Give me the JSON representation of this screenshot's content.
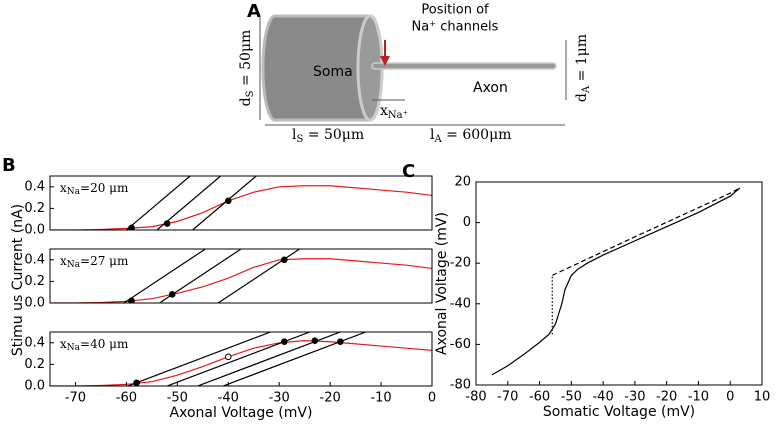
{
  "diagram": {
    "panel_label": "A",
    "soma": "Soma",
    "axon": "Axon",
    "channel_line1": "Position of",
    "channel_line2": "Na⁺ channels",
    "d_soma": {
      "symbol": "d",
      "sub": "S",
      "rest": " = 50μm"
    },
    "d_axon": {
      "symbol": "d",
      "sub": "A",
      "rest": " = 1μm"
    },
    "x_na": {
      "symbol": "x",
      "sub": "Na⁺"
    },
    "l_soma": {
      "symbol": "l",
      "sub": "S",
      "rest": " = 50μm"
    },
    "l_axon": {
      "symbol": "l",
      "sub": "A",
      "rest": " = 600μm"
    }
  },
  "chart_data": [
    {
      "type": "line",
      "panel_label": "B",
      "annotation": {
        "symbol": "x",
        "sub": "Na",
        "rest": "=20 μm"
      },
      "xlim": [
        -75,
        0
      ],
      "ylim": [
        0,
        0.5
      ],
      "yticks": [
        {
          "value": 0,
          "label": "0.0"
        },
        {
          "value": 0.2,
          "label": "0.2"
        },
        {
          "value": 0.4,
          "label": "0.4"
        }
      ],
      "series": [
        {
          "color": "#e41a1c",
          "style": "solid",
          "x": [
            -75,
            -70,
            -65,
            -60,
            -55,
            -50,
            -45,
            -40,
            -35,
            -30,
            -25,
            -20,
            -15,
            -10,
            -5,
            0
          ],
          "values": [
            0,
            0,
            0.005,
            0.015,
            0.03,
            0.08,
            0.16,
            0.27,
            0.35,
            0.4,
            0.41,
            0.41,
            0.39,
            0.37,
            0.35,
            0.32
          ]
        },
        {
          "color": "#000000",
          "style": "solid",
          "x": [
            -60,
            -47.5
          ],
          "values": [
            0,
            0.5
          ]
        },
        {
          "color": "#000000",
          "style": "solid",
          "x": [
            -54,
            -41.5
          ],
          "values": [
            0,
            0.5
          ]
        },
        {
          "color": "#000000",
          "style": "solid",
          "x": [
            -47,
            -34.5
          ],
          "values": [
            0,
            0.5
          ]
        },
        {
          "color": "#000000",
          "style": "points",
          "x": [
            -59,
            -52,
            -40
          ],
          "values": [
            0.02,
            0.06,
            0.27
          ]
        }
      ]
    },
    {
      "type": "line",
      "annotation": {
        "symbol": "x",
        "sub": "Na",
        "rest": "=27 μm"
      },
      "y_label": "Stimu us Current (nA)",
      "xlim": [
        -75,
        0
      ],
      "ylim": [
        0,
        0.5
      ],
      "yticks": [
        {
          "value": 0,
          "label": "0.0"
        },
        {
          "value": 0.2,
          "label": "0.2"
        },
        {
          "value": 0.4,
          "label": "0.4"
        }
      ],
      "series": [
        {
          "color": "#e41a1c",
          "style": "solid",
          "x": [
            -75,
            -70,
            -65,
            -60,
            -55,
            -50,
            -45,
            -40,
            -35,
            -30,
            -25,
            -20,
            -15,
            -10,
            -5,
            0
          ],
          "values": [
            0,
            0,
            0.005,
            0.015,
            0.04,
            0.09,
            0.15,
            0.23,
            0.33,
            0.4,
            0.41,
            0.41,
            0.39,
            0.37,
            0.35,
            0.32
          ]
        },
        {
          "color": "#000000",
          "style": "solid",
          "x": [
            -60.5,
            -44.5
          ],
          "values": [
            0,
            0.5
          ]
        },
        {
          "color": "#000000",
          "style": "solid",
          "x": [
            -53.5,
            -37.5
          ],
          "values": [
            0,
            0.5
          ]
        },
        {
          "color": "#000000",
          "style": "solid",
          "x": [
            -42,
            -26
          ],
          "values": [
            0,
            0.5
          ]
        },
        {
          "color": "#000000",
          "style": "points",
          "x": [
            -59,
            -51,
            -29
          ],
          "values": [
            0.02,
            0.08,
            0.4
          ]
        }
      ]
    },
    {
      "type": "line",
      "annotation": {
        "symbol": "x",
        "sub": "Na",
        "rest": "=40 μm"
      },
      "x_label": "Axonal Voltage (mV)",
      "xlim": [
        -75,
        0
      ],
      "ylim": [
        0,
        0.5
      ],
      "xticks": [
        -70,
        -60,
        -50,
        -40,
        -30,
        -20,
        -10,
        0
      ],
      "yticks": [
        {
          "value": 0,
          "label": "0.0"
        },
        {
          "value": 0.2,
          "label": "0.2"
        },
        {
          "value": 0.4,
          "label": "0.4"
        }
      ],
      "series": [
        {
          "color": "#e41a1c",
          "style": "solid",
          "x": [
            -75,
            -70,
            -65,
            -60,
            -55,
            -50,
            -45,
            -40,
            -35,
            -30,
            -25,
            -20,
            -15,
            -10,
            -5,
            0
          ],
          "values": [
            0,
            0,
            0.005,
            0.015,
            0.04,
            0.1,
            0.18,
            0.27,
            0.35,
            0.4,
            0.42,
            0.41,
            0.39,
            0.37,
            0.35,
            0.33
          ]
        },
        {
          "color": "#000000",
          "style": "solid",
          "x": [
            -59.7,
            -31.7
          ],
          "values": [
            0,
            0.5
          ]
        },
        {
          "color": "#000000",
          "style": "solid",
          "x": [
            -52,
            -24
          ],
          "values": [
            0,
            0.5
          ]
        },
        {
          "color": "#000000",
          "style": "solid",
          "x": [
            -46,
            -18
          ],
          "values": [
            0,
            0.5
          ]
        },
        {
          "color": "#000000",
          "style": "solid",
          "x": [
            -41,
            -13
          ],
          "values": [
            0,
            0.5
          ]
        },
        {
          "color": "#000000",
          "style": "points",
          "x": [
            -58,
            -29,
            -23,
            -18
          ],
          "values": [
            0.03,
            0.41,
            0.42,
            0.41
          ]
        },
        {
          "color": "#000000",
          "style": "open-points",
          "x": [
            -40
          ],
          "values": [
            0.27
          ]
        }
      ]
    },
    {
      "type": "line",
      "panel_label": "C",
      "x_label": "Somatic Voltage (mV)",
      "y_label": "Axonal Voltage (mV)",
      "xlim": [
        -80,
        10
      ],
      "ylim": [
        -80,
        20
      ],
      "xticks": [
        -80,
        -70,
        -60,
        -50,
        -40,
        -30,
        -20,
        -10,
        0,
        10
      ],
      "yticks": [
        -80,
        -60,
        -40,
        -20,
        0,
        20
      ],
      "series": [
        {
          "color": "#000000",
          "style": "solid",
          "x": [
            -75,
            -70,
            -65,
            -60,
            -57,
            -55,
            -53,
            -52,
            -50,
            -48,
            -45,
            -40,
            -30,
            -20,
            -10,
            0,
            3
          ],
          "values": [
            -75,
            -70.5,
            -65,
            -59,
            -55,
            -50,
            -40,
            -33,
            -26,
            -23,
            -20,
            -16,
            -9,
            -2,
            5,
            13,
            17
          ]
        },
        {
          "color": "#000000",
          "style": "dashed",
          "x": [
            -56,
            -30,
            0,
            3
          ],
          "values": [
            -26,
            -7,
            14.5,
            17
          ]
        },
        {
          "color": "#000000",
          "style": "dotted",
          "x": [
            -56,
            -56
          ],
          "values": [
            -55,
            -26
          ]
        }
      ]
    }
  ]
}
